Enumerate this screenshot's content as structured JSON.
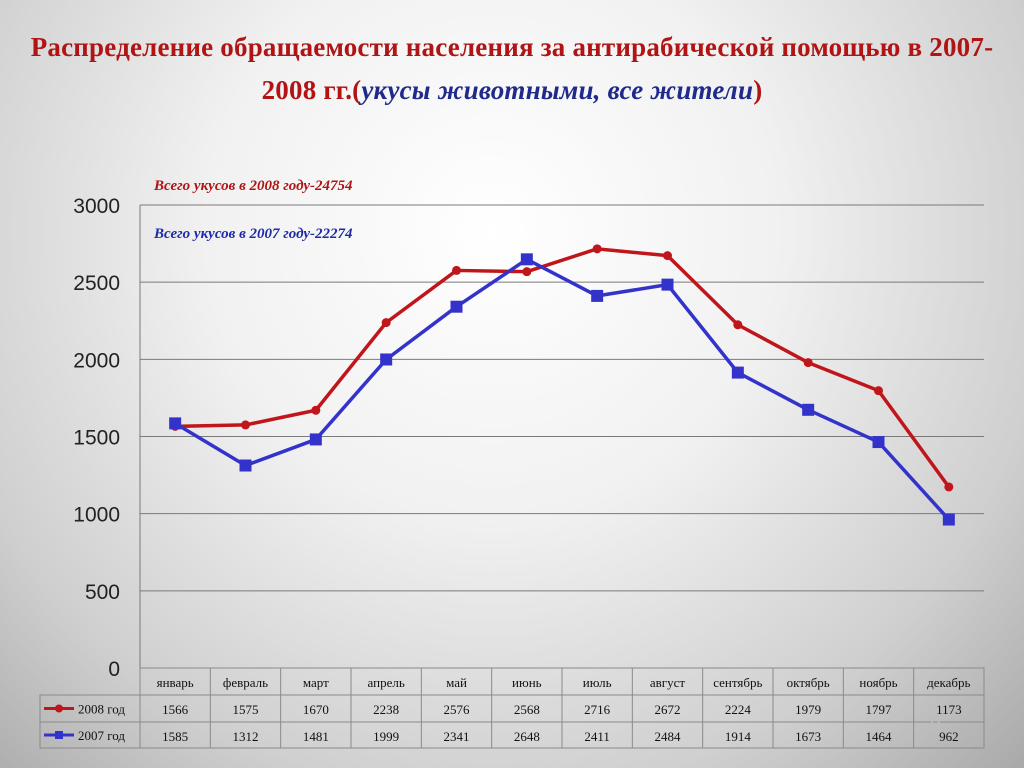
{
  "slide": {
    "title_main": "Распределение обращаемости населения за антирабической помощью в 2007-2008 гг.(",
    "title_italic": "укусы животными, все жители",
    "title_close": ")",
    "total_2008": "Всего укусов в 2008 году-24754",
    "total_2007": "Всего укусов в 2007 году-22274",
    "page_number": "3"
  },
  "chart_data": {
    "type": "line",
    "title": "Распределение обращаемости населения за антирабической помощью в 2007-2008 гг.(укусы животными, все жители)",
    "categories": [
      "январь",
      "февраль",
      "март",
      "апрель",
      "май",
      "июнь",
      "июль",
      "август",
      "сентябрь",
      "октябрь",
      "ноябрь",
      "декабрь"
    ],
    "series": [
      {
        "name": "2008 год",
        "values": [
          1566,
          1575,
          1670,
          2238,
          2576,
          2568,
          2716,
          2672,
          2224,
          1979,
          1797,
          1173
        ],
        "color": "#c0161b",
        "marker": "circle"
      },
      {
        "name": "2007 год",
        "values": [
          1585,
          1312,
          1481,
          1999,
          2341,
          2648,
          2411,
          2484,
          1914,
          1673,
          1464,
          962
        ],
        "color": "#3333cc",
        "marker": "square"
      }
    ],
    "ylim": [
      0,
      3000
    ],
    "yticks": [
      0,
      500,
      1000,
      1500,
      2000,
      2500,
      3000
    ],
    "grid": true,
    "legend": "data-table-bottom"
  }
}
